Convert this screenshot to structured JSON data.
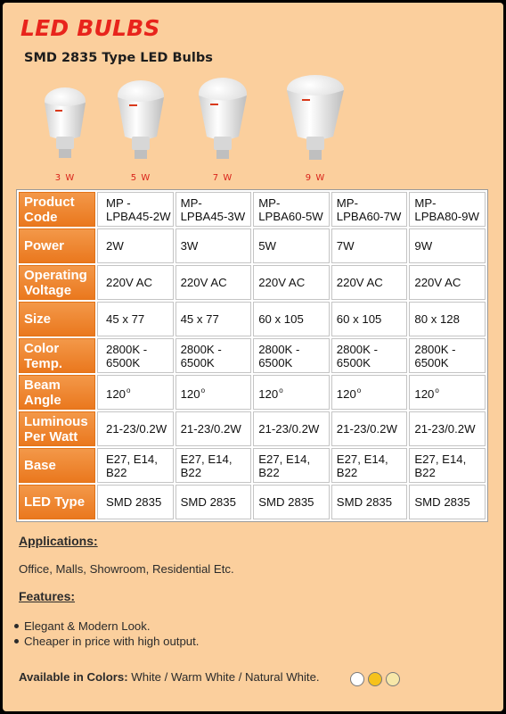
{
  "header": {
    "title": "LED BULBS",
    "subtitle": "SMD 2835 Type LED Bulbs"
  },
  "bulbs": [
    {
      "watt": "3 W",
      "size_level": 1
    },
    {
      "watt": "5 W",
      "size_level": 2
    },
    {
      "watt": "7 W",
      "size_level": 3
    },
    {
      "watt": "9 W",
      "size_level": 4
    }
  ],
  "table": {
    "rows": [
      {
        "label": "Product Code",
        "values": [
          "MP - LPBA45-2W",
          "MP- LPBA45-3W",
          "MP- LPBA60-5W",
          "MP- LPBA60-7W",
          "MP- LPBA80-9W"
        ]
      },
      {
        "label": "Power",
        "values": [
          "2W",
          "3W",
          "5W",
          "7W",
          "9W"
        ]
      },
      {
        "label": "Operating Voltage",
        "values": [
          "220V AC",
          "220V AC",
          "220V AC",
          "220V AC",
          "220V AC"
        ]
      },
      {
        "label": "Size",
        "values": [
          "45 x 77",
          "45 x 77",
          "60 x 105",
          "60 x 105",
          "80 x 128"
        ]
      },
      {
        "label": "Color Temp.",
        "values": [
          "2800K - 6500K",
          "2800K - 6500K",
          "2800K - 6500K",
          "2800K - 6500K",
          "2800K - 6500K"
        ]
      },
      {
        "label": "Beam Angle",
        "values": [
          "120",
          "120",
          "120",
          "120",
          "120"
        ],
        "suffix": "o"
      },
      {
        "label": "Luminous Per Watt",
        "values": [
          "21-23/0.2W",
          "21-23/0.2W",
          "21-23/0.2W",
          "21-23/0.2W",
          "21-23/0.2W"
        ]
      },
      {
        "label": "Base",
        "values": [
          "E27, E14, B22",
          "E27, E14, B22",
          "E27, E14, B22",
          "E27, E14, B22",
          "E27, E14, B22"
        ]
      },
      {
        "label": "LED Type",
        "values": [
          "SMD 2835",
          "SMD 2835",
          "SMD 2835",
          "SMD 2835",
          "SMD 2835"
        ]
      }
    ]
  },
  "applications": {
    "heading": "Applications:",
    "text": "Office, Malls, Showroom, Residential Etc."
  },
  "features": {
    "heading": "Features:",
    "items": [
      "Elegant & Modern Look.",
      "Cheaper in price with high output."
    ]
  },
  "colors": {
    "label": "Available in Colors:",
    "text": "White / Warm White / Natural White.",
    "swatches": [
      "#ffffff",
      "#f6c21c",
      "#f7e7a8"
    ]
  },
  "theme": {
    "accent": "#e8241c",
    "label_orange": "#ea781e",
    "background": "#fbcf9d"
  }
}
